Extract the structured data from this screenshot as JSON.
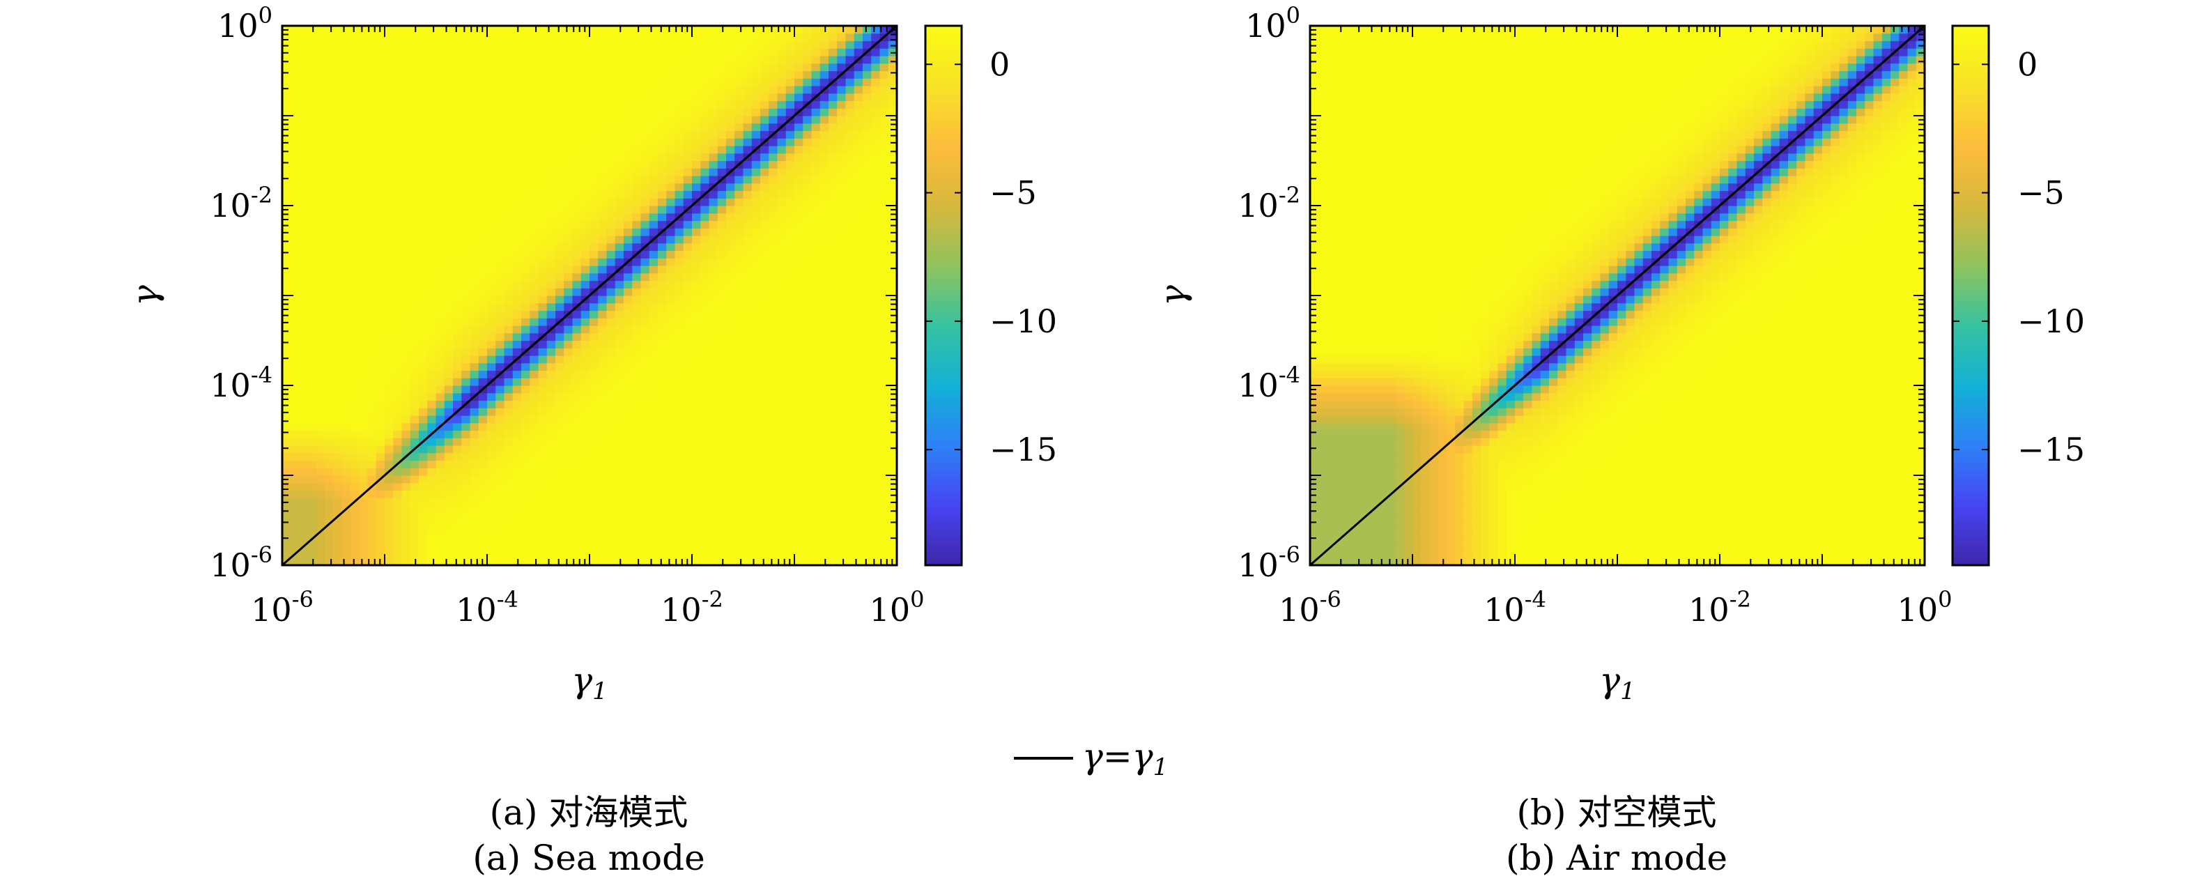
{
  "chart_data": [
    {
      "type": "heatmap",
      "caption_zh": "(a) 对海模式",
      "caption_en": "(a) Sea mode",
      "xlabel_base": "γ",
      "xlabel_sub": "1",
      "ylabel": "γ",
      "x_scale": "log",
      "y_scale": "log",
      "xlim": [
        1e-06,
        1
      ],
      "ylim": [
        1e-06,
        1
      ],
      "x_ticks": [
        {
          "value": 1e-06,
          "base": "10",
          "exp": "-6"
        },
        {
          "value": 0.0001,
          "base": "10",
          "exp": "-4"
        },
        {
          "value": 0.01,
          "base": "10",
          "exp": "-2"
        },
        {
          "value": 1,
          "base": "10",
          "exp": "0"
        }
      ],
      "y_ticks": [
        {
          "value": 1e-06,
          "base": "10",
          "exp": "-6"
        },
        {
          "value": 0.0001,
          "base": "10",
          "exp": "-4"
        },
        {
          "value": 0.01,
          "base": "10",
          "exp": "-2"
        },
        {
          "value": 1,
          "base": "10",
          "exp": "0"
        }
      ],
      "colorbar": {
        "range": [
          -19.5,
          1.5
        ],
        "ticks": [
          {
            "value": 0,
            "label": "0"
          },
          {
            "value": -5,
            "label": "−5"
          },
          {
            "value": -10,
            "label": "−10"
          },
          {
            "value": -15,
            "label": "−15"
          }
        ]
      },
      "valley_start_log10_gamma1": -4.8,
      "valley_min": -19.5,
      "low_gamma_floor_log10": -5.0,
      "low_gamma_floor_value": -6.0,
      "colormap": [
        "#3e26a8",
        "#4745f3",
        "#2d81f6",
        "#13b1d5",
        "#36c2a0",
        "#8fc35d",
        "#d7b83c",
        "#fdbd3c",
        "#f8e226",
        "#f9fb15"
      ]
    },
    {
      "type": "heatmap",
      "caption_zh": "(b) 对空模式",
      "caption_en": "(b) Air mode",
      "xlabel_base": "γ",
      "xlabel_sub": "1",
      "ylabel": "γ",
      "x_scale": "log",
      "y_scale": "log",
      "xlim": [
        1e-06,
        1
      ],
      "ylim": [
        1e-06,
        1
      ],
      "x_ticks": [
        {
          "value": 1e-06,
          "base": "10",
          "exp": "-6"
        },
        {
          "value": 0.0001,
          "base": "10",
          "exp": "-4"
        },
        {
          "value": 0.01,
          "base": "10",
          "exp": "-2"
        },
        {
          "value": 1,
          "base": "10",
          "exp": "0"
        }
      ],
      "y_ticks": [
        {
          "value": 1e-06,
          "base": "10",
          "exp": "-6"
        },
        {
          "value": 0.0001,
          "base": "10",
          "exp": "-4"
        },
        {
          "value": 0.01,
          "base": "10",
          "exp": "-2"
        },
        {
          "value": 1,
          "base": "10",
          "exp": "0"
        }
      ],
      "colorbar": {
        "range": [
          -19.5,
          1.5
        ],
        "ticks": [
          {
            "value": 0,
            "label": "0"
          },
          {
            "value": -5,
            "label": "−5"
          },
          {
            "value": -10,
            "label": "−10"
          },
          {
            "value": -15,
            "label": "−15"
          }
        ]
      },
      "valley_start_log10_gamma1": -4.3,
      "valley_min": -19.5,
      "low_gamma_floor_log10": -4.2,
      "low_gamma_floor_value": -7.0,
      "colormap": [
        "#3e26a8",
        "#4745f3",
        "#2d81f6",
        "#13b1d5",
        "#36c2a0",
        "#8fc35d",
        "#d7b83c",
        "#fdbd3c",
        "#f8e226",
        "#f9fb15"
      ]
    }
  ],
  "legend": {
    "label_base": "γ=γ",
    "label_sub": "1"
  }
}
